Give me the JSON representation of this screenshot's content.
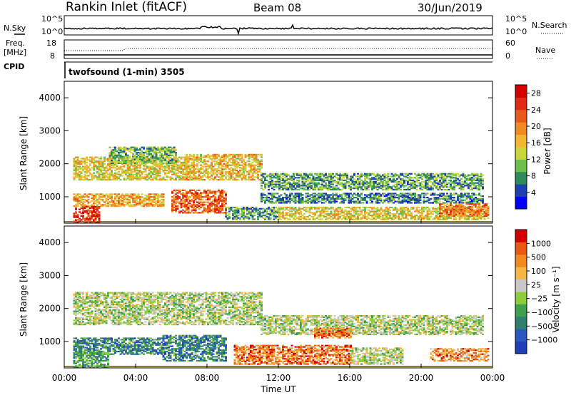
{
  "header": {
    "station": "Rankin Inlet (fitACF)",
    "beam": "Beam 08",
    "date": "30/Jun/2019"
  },
  "top_panels": {
    "nsky_label": "N.Sky",
    "nsky_ticks": [
      "10^5",
      "10^0"
    ],
    "nsearch_label": "N.Search",
    "freq_label_1": "Freq.",
    "freq_label_2": "[MHz]",
    "freq_ticks": [
      "18",
      "8"
    ],
    "nave_ticks": [
      "60",
      "0"
    ],
    "nave_label": "Nave",
    "cpid_label": "CPID",
    "cpid_text": "twofsound (1-min) 3505"
  },
  "colors": {
    "power": [
      "#0000ff",
      "#1f3fb0",
      "#2e8b57",
      "#6cbf4a",
      "#c8d63c",
      "#f2b633",
      "#f08a21",
      "#e85a1a",
      "#e02a14",
      "#d40000"
    ],
    "velocity": [
      "#1e3fb5",
      "#2a57c0",
      "#2e7f6e",
      "#3ea04a",
      "#8ccd3c",
      "#c8c8c8",
      "#f5b642",
      "#f08a1e",
      "#e85a14",
      "#d40000"
    ]
  },
  "chart_data": [
    {
      "type": "heatmap",
      "name": "power",
      "ylabel": "Slant Range [km]",
      "ylim": [
        200,
        4500
      ],
      "yticks": [
        "1000",
        "2000",
        "3000",
        "4000"
      ],
      "xlim_hours": [
        0,
        24
      ],
      "colorbar": {
        "label": "Power [dB]",
        "ticks": [
          "4",
          "8",
          "12",
          "16",
          "20",
          "24",
          "28"
        ],
        "range": [
          0,
          30
        ]
      },
      "bands": [
        {
          "start": 0.5,
          "end": 6.8,
          "lo": 1500,
          "hi": 2200,
          "level": 0.5
        },
        {
          "start": 2.5,
          "end": 6.2,
          "lo": 2000,
          "hi": 2500,
          "level": 0.35
        },
        {
          "start": 6.8,
          "end": 11.0,
          "lo": 1500,
          "hi": 2300,
          "level": 0.55
        },
        {
          "start": 0.5,
          "end": 5.5,
          "lo": 700,
          "hi": 1100,
          "level": 0.6
        },
        {
          "start": 6.0,
          "end": 9.0,
          "lo": 500,
          "hi": 1200,
          "level": 0.75
        },
        {
          "start": 0.5,
          "end": 2.0,
          "lo": 200,
          "hi": 700,
          "level": 0.85
        },
        {
          "start": 9.0,
          "end": 12.0,
          "lo": 300,
          "hi": 700,
          "level": 0.3
        },
        {
          "start": 11.0,
          "end": 23.5,
          "lo": 1200,
          "hi": 1700,
          "level": 0.3
        },
        {
          "start": 11.0,
          "end": 23.5,
          "lo": 800,
          "hi": 1100,
          "level": 0.25
        },
        {
          "start": 12.0,
          "end": 23.8,
          "lo": 300,
          "hi": 700,
          "level": 0.5
        },
        {
          "start": 21.0,
          "end": 23.8,
          "lo": 400,
          "hi": 800,
          "level": 0.7
        }
      ]
    },
    {
      "type": "heatmap",
      "name": "velocity",
      "ylabel": "Slant Range [km]",
      "ylim": [
        200,
        4500
      ],
      "yticks": [
        "1000",
        "2000",
        "3000",
        "4000"
      ],
      "xlabel": "Time UT",
      "xticks": [
        "00:00",
        "04:00",
        "08:00",
        "12:00",
        "16:00",
        "20:00",
        "00:00"
      ],
      "xlim_hours": [
        0,
        24
      ],
      "colorbar": {
        "label": "Velocity [m s⁻¹]",
        "ticks": [
          "1000",
          "500",
          "100",
          "25",
          "−25",
          "−100",
          "−500",
          "−1000"
        ]
      },
      "bands": [
        {
          "start": 0.5,
          "end": 11.0,
          "lo": 1500,
          "hi": 2500,
          "level": 0.5
        },
        {
          "start": 0.5,
          "end": 5.5,
          "lo": 600,
          "hi": 1100,
          "level": 0.25
        },
        {
          "start": 5.5,
          "end": 9.0,
          "lo": 400,
          "hi": 1200,
          "level": 0.25
        },
        {
          "start": 0.5,
          "end": 2.5,
          "lo": 200,
          "hi": 700,
          "level": 0.35
        },
        {
          "start": 9.5,
          "end": 16.0,
          "lo": 300,
          "hi": 900,
          "level": 0.8
        },
        {
          "start": 11.0,
          "end": 23.5,
          "lo": 1200,
          "hi": 1800,
          "level": 0.5
        },
        {
          "start": 14.0,
          "end": 16.0,
          "lo": 1100,
          "hi": 1400,
          "level": 0.8
        },
        {
          "start": 16.0,
          "end": 19.0,
          "lo": 300,
          "hi": 800,
          "level": 0.5
        },
        {
          "start": 20.5,
          "end": 23.8,
          "lo": 400,
          "hi": 800,
          "level": 0.75
        }
      ]
    }
  ]
}
